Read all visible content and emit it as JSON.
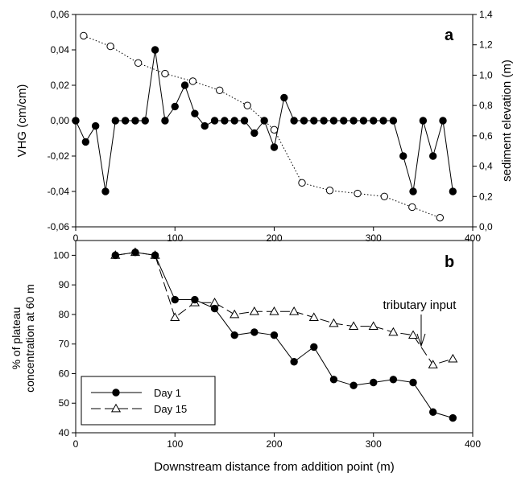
{
  "chart_data": [
    {
      "panel": "a",
      "type": "line",
      "ylabel": "VHG (cm/cm)",
      "y2label": "sediment elevation (m)",
      "xlim": [
        0,
        400
      ],
      "ylim": [
        -0.06,
        0.06
      ],
      "y2lim": [
        0.0,
        1.4
      ],
      "xticks": [
        "0",
        "100",
        "200",
        "300",
        "400"
      ],
      "yticks": [
        "-0,06",
        "-0,04",
        "-0,02",
        "0,00",
        "0,02",
        "0,04",
        "0,06"
      ],
      "y2ticks": [
        "0,0",
        "0,2",
        "0,4",
        "0,6",
        "0,8",
        "1,0",
        "1,2",
        "1,4"
      ],
      "series": [
        {
          "axis": "left",
          "marker": "filled-circle",
          "line": "solid",
          "x": [
            0,
            10,
            20,
            30,
            40,
            50,
            60,
            70,
            80,
            90,
            100,
            110,
            120,
            130,
            140,
            150,
            160,
            170,
            180,
            190,
            200,
            210,
            220,
            230,
            240,
            250,
            260,
            270,
            280,
            290,
            300,
            310,
            320,
            330,
            340,
            350,
            360,
            370,
            380
          ],
          "values": [
            0.0,
            -0.012,
            -0.003,
            -0.04,
            0.0,
            0.0,
            0.0,
            0.0,
            0.04,
            0.0,
            0.008,
            0.02,
            0.004,
            -0.003,
            0.0,
            0.0,
            0.0,
            0.0,
            -0.007,
            0.0,
            -0.015,
            0.013,
            0.0,
            0.0,
            0.0,
            0.0,
            0.0,
            0.0,
            0.0,
            0.0,
            0.0,
            0.0,
            0.0,
            -0.02,
            -0.04,
            0.0,
            -0.02,
            0.0,
            -0.04
          ]
        },
        {
          "axis": "right",
          "marker": "open-circle",
          "line": "dotted",
          "x": [
            8,
            35,
            63,
            90,
            118,
            145,
            173,
            200,
            228,
            256,
            284,
            311,
            339,
            367
          ],
          "values": [
            1.26,
            1.19,
            1.08,
            1.01,
            0.96,
            0.9,
            0.8,
            0.64,
            0.29,
            0.24,
            0.22,
            0.2,
            0.13,
            0.06
          ]
        }
      ]
    },
    {
      "panel": "b",
      "type": "line",
      "xlabel": "Downstream distance from addition point (m)",
      "ylabel": "% of plateau concentration at 60 m",
      "xlim": [
        0,
        400
      ],
      "ylim": [
        40,
        105
      ],
      "xticks": [
        "0",
        "100",
        "200",
        "300",
        "400"
      ],
      "yticks": [
        "40",
        "50",
        "60",
        "70",
        "80",
        "90",
        "100"
      ],
      "legend": "lower-left",
      "series": [
        {
          "name": "Day 1",
          "marker": "filled-circle",
          "line": "solid",
          "x": [
            40,
            60,
            80,
            100,
            120,
            140,
            160,
            180,
            200,
            220,
            240,
            260,
            280,
            300,
            320,
            340,
            360,
            380
          ],
          "values": [
            100,
            101,
            100,
            85,
            85,
            82,
            73,
            74,
            73,
            64,
            69,
            58,
            56,
            57,
            58,
            57,
            47,
            45
          ]
        },
        {
          "name": "Day 15",
          "marker": "open-triangle",
          "line": "long-dash",
          "x": [
            40,
            60,
            80,
            100,
            120,
            140,
            160,
            180,
            200,
            220,
            240,
            260,
            280,
            300,
            320,
            340,
            360,
            380
          ],
          "values": [
            100,
            101,
            100,
            79,
            84,
            84,
            80,
            81,
            81,
            81,
            79,
            77,
            76,
            76,
            74,
            73,
            63,
            65
          ]
        }
      ],
      "annotation": "tributary input"
    }
  ]
}
